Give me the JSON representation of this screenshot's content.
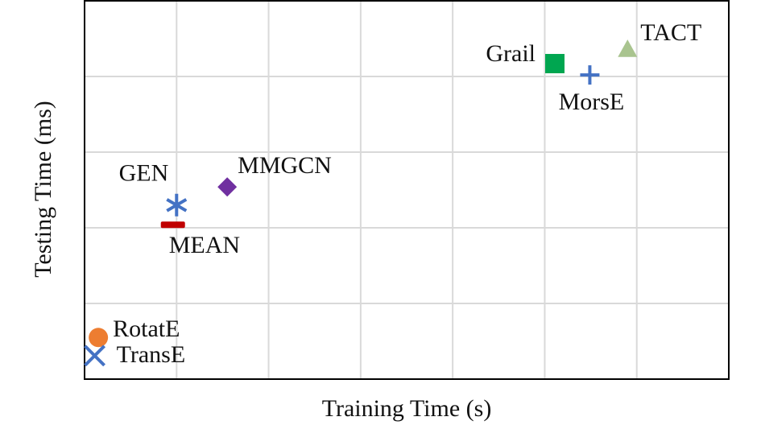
{
  "chart_data": {
    "type": "scatter",
    "x_label": "Training Time (s)",
    "y_label": "Testing Time (ms)",
    "xlim": [
      0,
      7
    ],
    "xticks": [
      1,
      2,
      3,
      4,
      5,
      6
    ],
    "ylim": [
      0,
      5
    ],
    "yticks": [
      1,
      2,
      3,
      4
    ],
    "grid": true,
    "series": [
      {
        "name": "Grail",
        "color": "#00a650",
        "marker": "square",
        "x": [
          5.11
        ],
        "values": [
          4.17
        ]
      },
      {
        "name": "MorsE",
        "color": "#4472c4",
        "marker": "plus",
        "x": [
          5.49
        ],
        "values": [
          4.02
        ]
      },
      {
        "name": "TACT",
        "color": "#a9c48f",
        "marker": "triangle",
        "x": [
          5.9
        ],
        "values": [
          4.36
        ]
      },
      {
        "name": "MMGCN",
        "color": "#7030a0",
        "marker": "diamond",
        "x": [
          1.55
        ],
        "values": [
          2.54
        ]
      },
      {
        "name": "GEN",
        "color": "#4472c4",
        "marker": "asterisk",
        "x": [
          1.0
        ],
        "values": [
          2.3
        ]
      },
      {
        "name": "MEAN",
        "color": "#c00000",
        "marker": "dash",
        "x": [
          0.96
        ],
        "values": [
          2.04
        ]
      },
      {
        "name": "RotatE",
        "color": "#ed7d31",
        "marker": "circle",
        "x": [
          0.15
        ],
        "values": [
          0.55
        ]
      },
      {
        "name": "TransE",
        "color": "#4472c4",
        "marker": "x",
        "x": [
          0.11
        ],
        "values": [
          0.31
        ]
      }
    ]
  }
}
